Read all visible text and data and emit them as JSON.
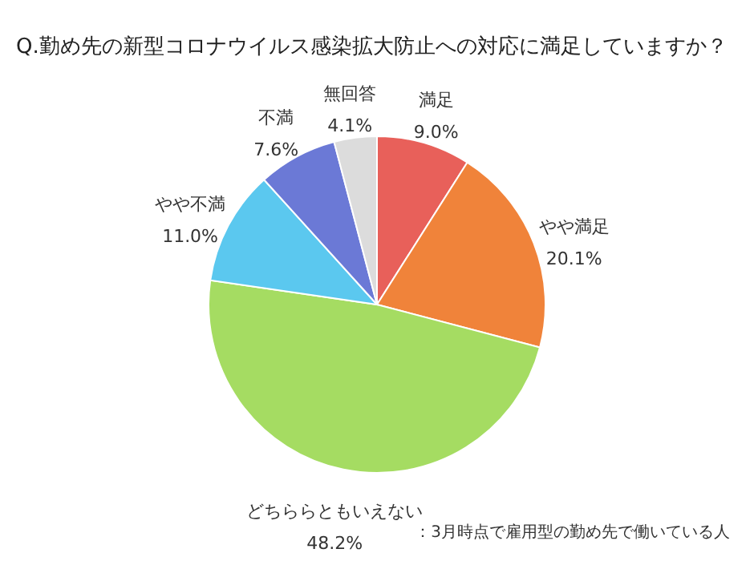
{
  "chart_data": {
    "type": "pie",
    "title": "Q.勤め先の新型コロナウイルス感染拡大防止への対応に満足していますか？",
    "categories": [
      "満足",
      "やや満足",
      "どちららともいえない",
      "やや不満",
      "不満",
      "無回答"
    ],
    "values": [
      9.0,
      20.1,
      48.2,
      11.0,
      7.6,
      4.1
    ],
    "value_labels": [
      "9.0%",
      "20.1%",
      "48.2%",
      "11.0%",
      "7.6%",
      "4.1%"
    ],
    "colors": [
      "#e8605a",
      "#f0833a",
      "#a5dc62",
      "#5bc8ef",
      "#6b79d6",
      "#dcdcdc"
    ],
    "annotations": [
      "：3月時点で雇用型の勤め先で働いている人"
    ],
    "legend": false
  }
}
